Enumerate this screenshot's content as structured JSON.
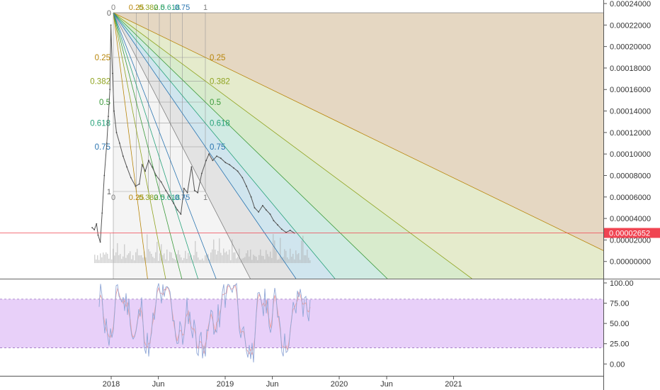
{
  "chart_data": {
    "type": "line",
    "main_pane": {
      "series_name": "",
      "y_axis": {
        "ticks": [
          "0.00024000",
          "0.00022000",
          "0.00020000",
          "0.00018000",
          "0.00016000",
          "0.00014000",
          "0.00012000",
          "0.00010000",
          "0.00008000",
          "0.00006000",
          "0.00004000",
          "0.00002000",
          "0.00000000"
        ],
        "ylim": [
          -1.5e-06,
          0.00024
        ]
      },
      "last_price": "0.00002652",
      "last_price_color": "#f04452",
      "price_points": [
        {
          "x": "2017-11-01",
          "y": 3.15e-05
        },
        {
          "x": "2017-11-08",
          "y": 2.95e-05
        },
        {
          "x": "2017-11-15",
          "y": 3.5e-05
        },
        {
          "x": "2017-11-20",
          "y": 2.45e-05
        },
        {
          "x": "2017-11-27",
          "y": 1.8e-05
        },
        {
          "x": "2017-12-03",
          "y": 4.5e-05
        },
        {
          "x": "2017-12-10",
          "y": 8e-05
        },
        {
          "x": "2017-12-18",
          "y": 0.00011
        },
        {
          "x": "2017-12-23",
          "y": 0.000135
        },
        {
          "x": "2017-12-28",
          "y": 0.00016
        },
        {
          "x": "2017-12-31",
          "y": 0.00022
        },
        {
          "x": "2018-01-05",
          "y": 0.000175
        },
        {
          "x": "2018-01-10",
          "y": 0.00014
        },
        {
          "x": "2018-01-18",
          "y": 0.00012
        },
        {
          "x": "2018-01-28",
          "y": 0.00011
        },
        {
          "x": "2018-02-08",
          "y": 9.8e-05
        },
        {
          "x": "2018-02-20",
          "y": 8.8e-05
        },
        {
          "x": "2018-03-05",
          "y": 7.8e-05
        },
        {
          "x": "2018-03-20",
          "y": 7e-05
        },
        {
          "x": "2018-04-01",
          "y": 7.2e-05
        },
        {
          "x": "2018-04-10",
          "y": 9e-05
        },
        {
          "x": "2018-04-20",
          "y": 8.4e-05
        },
        {
          "x": "2018-05-01",
          "y": 9.4e-05
        },
        {
          "x": "2018-05-12",
          "y": 8.8e-05
        },
        {
          "x": "2018-05-25",
          "y": 8e-05
        },
        {
          "x": "2018-06-10",
          "y": 7.4e-05
        },
        {
          "x": "2018-06-25",
          "y": 6.6e-05
        },
        {
          "x": "2018-07-08",
          "y": 6e-05
        },
        {
          "x": "2018-07-20",
          "y": 5.4e-05
        },
        {
          "x": "2018-08-01",
          "y": 4.8e-05
        },
        {
          "x": "2018-08-12",
          "y": 4.4e-05
        },
        {
          "x": "2018-08-22",
          "y": 6.8e-05
        },
        {
          "x": "2018-09-02",
          "y": 6.4e-05
        },
        {
          "x": "2018-09-15",
          "y": 8.8e-05
        },
        {
          "x": "2018-09-25",
          "y": 6.6e-05
        },
        {
          "x": "2018-10-05",
          "y": 6.4e-05
        },
        {
          "x": "2018-10-18",
          "y": 8.2e-05
        },
        {
          "x": "2018-11-01",
          "y": 9.4e-05
        },
        {
          "x": "2018-11-10",
          "y": 0.0001
        },
        {
          "x": "2018-11-22",
          "y": 9.4e-05
        },
        {
          "x": "2018-12-05",
          "y": 9.8e-05
        },
        {
          "x": "2018-12-18",
          "y": 9.6e-05
        },
        {
          "x": "2019-01-02",
          "y": 9.2e-05
        },
        {
          "x": "2019-01-15",
          "y": 9e-05
        },
        {
          "x": "2019-01-28",
          "y": 8.7e-05
        },
        {
          "x": "2019-02-10",
          "y": 8.4e-05
        },
        {
          "x": "2019-02-25",
          "y": 7.8e-05
        },
        {
          "x": "2019-03-10",
          "y": 7e-05
        },
        {
          "x": "2019-03-25",
          "y": 6e-05
        },
        {
          "x": "2019-04-05",
          "y": 5e-05
        },
        {
          "x": "2019-04-18",
          "y": 4.6e-05
        },
        {
          "x": "2019-05-01",
          "y": 5.2e-05
        },
        {
          "x": "2019-05-12",
          "y": 4.8e-05
        },
        {
          "x": "2019-05-25",
          "y": 4.4e-05
        },
        {
          "x": "2019-06-05",
          "y": 3.8e-05
        },
        {
          "x": "2019-06-18",
          "y": 3.4e-05
        },
        {
          "x": "2019-07-01",
          "y": 3e-05
        },
        {
          "x": "2019-07-15",
          "y": 2.7e-05
        },
        {
          "x": "2019-07-28",
          "y": 2.9e-05
        },
        {
          "x": "2019-08-10",
          "y": 2.65e-05
        }
      ],
      "fib_speed_fan": {
        "levels": [
          "0",
          "0.25",
          "0.382",
          "0.5",
          "0.618",
          "0.75",
          "1"
        ],
        "top_labels": [
          "0",
          "0.25",
          "0.382",
          "0.5",
          "0.618",
          "0.75",
          "1"
        ],
        "level_colors": [
          "#808080",
          "#b8860b",
          "#8fa31f",
          "#3a9a3a",
          "#27a27a",
          "#2a74b0",
          "#808080"
        ],
        "fill_colors": [
          "rgba(200,155,90,0.32)",
          "rgba(205,220,140,0.38)",
          "rgba(170,220,140,0.38)",
          "rgba(150,220,200,0.38)",
          "rgba(150,205,230,0.38)",
          "rgba(200,200,200,0.38)"
        ]
      }
    },
    "oscillator_pane": {
      "series_name": "",
      "y_axis": {
        "ticks": [
          "100.00",
          "75.00",
          "50.00",
          "25.00",
          "0.00"
        ],
        "ylim": [
          -5,
          100
        ]
      },
      "band": [
        20,
        80
      ],
      "band_color": "#e2c4f8"
    },
    "x_axis": {
      "tick_labels": [
        "2018",
        "Jun",
        "2019",
        "Jun",
        "2020",
        "Jun",
        "2021"
      ],
      "tick_dates": [
        "2018-01-01",
        "2018-06-01",
        "2019-01-01",
        "2019-06-01",
        "2020-01-01",
        "2020-06-01",
        "2021-01-01"
      ]
    }
  }
}
